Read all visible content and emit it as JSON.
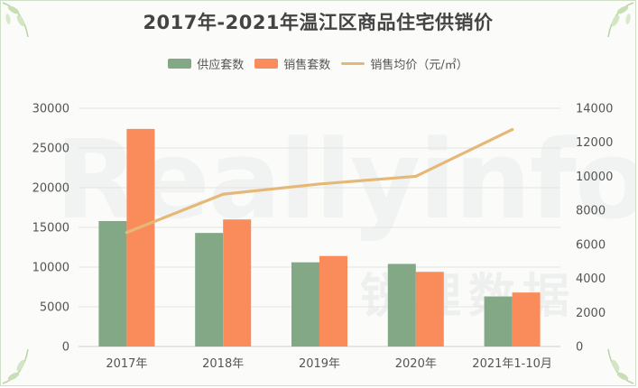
{
  "title": "2017年-2021年温江区商品住宅供销价",
  "watermark": {
    "brand": "Reallyinfo",
    "cn": "锐理数据"
  },
  "legend": {
    "supply_label": "供应套数",
    "sales_label": "销售套数",
    "price_label": "销售均价（元/㎡）"
  },
  "colors": {
    "supply": "#82a886",
    "sales": "#f98c5a",
    "price": "#e6b877",
    "grid": "#e3e3e3",
    "text": "#555555"
  },
  "chart_data": {
    "type": "bar",
    "title": "2017年-2021年温江区商品住宅供销价",
    "categories": [
      "2017年",
      "2018年",
      "2019年",
      "2020年",
      "2021年1-10月"
    ],
    "series": [
      {
        "name": "供应套数",
        "type": "bar",
        "axis": "left",
        "values": [
          15800,
          14300,
          10600,
          10400,
          6300
        ]
      },
      {
        "name": "销售套数",
        "type": "bar",
        "axis": "left",
        "values": [
          27400,
          16000,
          11400,
          9400,
          6800
        ]
      },
      {
        "name": "销售均价（元/㎡）",
        "type": "line",
        "axis": "right",
        "values": [
          6700,
          8950,
          9550,
          10000,
          12750
        ]
      }
    ],
    "y_left": {
      "min": 0,
      "max": 30000,
      "ticks": [
        "0",
        "5000",
        "10000",
        "15000",
        "20000",
        "25000",
        "30000"
      ]
    },
    "y_right": {
      "min": 0,
      "max": 14000,
      "ticks": [
        "0",
        "2000",
        "4000",
        "6000",
        "8000",
        "10000",
        "12000",
        "14000"
      ]
    },
    "grid": true,
    "legend_position": "top-center"
  }
}
